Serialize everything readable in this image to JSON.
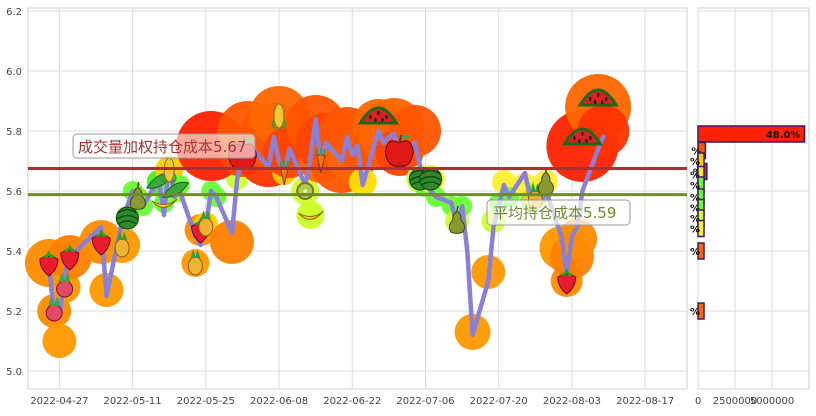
{
  "chart_data": [
    {
      "type": "line",
      "x_ticks": [
        "2022-04-27",
        "2022-05-11",
        "2022-05-25",
        "2022-06-08",
        "2022-06-22",
        "2022-07-06",
        "2022-07-20",
        "2022-08-03",
        "2022-08-17"
      ],
      "y_ticks": [
        "5.0",
        "5.2",
        "5.4",
        "5.6",
        "5.8",
        "6.0",
        "6.2"
      ],
      "ylim": [
        4.94,
        6.21
      ],
      "x_start": "2022-04-21",
      "x_end": "2022-08-25",
      "grid": true,
      "series": [
        {
          "color": "#8a80d8",
          "x": [
            "2022-04-25",
            "2022-04-26",
            "2022-04-27",
            "2022-04-28",
            "2022-04-29",
            "2022-05-05",
            "2022-05-06",
            "2022-05-09",
            "2022-05-10",
            "2022-05-11",
            "2022-05-12",
            "2022-05-13",
            "2022-05-16",
            "2022-05-17",
            "2022-05-18",
            "2022-05-19",
            "2022-05-20",
            "2022-05-23",
            "2022-05-24",
            "2022-05-25",
            "2022-05-26",
            "2022-05-27",
            "2022-05-30",
            "2022-05-31",
            "2022-06-01",
            "2022-06-02",
            "2022-06-06",
            "2022-06-07",
            "2022-06-08",
            "2022-06-09",
            "2022-06-10",
            "2022-06-13",
            "2022-06-14",
            "2022-06-15",
            "2022-06-16",
            "2022-06-17",
            "2022-06-20",
            "2022-06-21",
            "2022-06-22",
            "2022-06-23",
            "2022-06-24",
            "2022-06-27",
            "2022-06-28",
            "2022-06-29",
            "2022-06-30",
            "2022-07-01",
            "2022-07-04",
            "2022-07-05",
            "2022-07-06",
            "2022-07-07",
            "2022-07-08",
            "2022-07-11",
            "2022-07-12",
            "2022-07-13",
            "2022-07-14",
            "2022-07-15",
            "2022-07-18",
            "2022-07-19",
            "2022-07-20",
            "2022-07-21",
            "2022-07-22",
            "2022-07-25",
            "2022-07-26",
            "2022-07-27",
            "2022-07-28",
            "2022-07-29",
            "2022-08-01",
            "2022-08-02",
            "2022-08-03",
            "2022-08-04",
            "2022-08-05",
            "2022-08-08",
            "2022-08-09"
          ],
          "values": [
            5.35,
            5.2,
            5.18,
            5.32,
            5.38,
            5.48,
            5.25,
            5.5,
            5.55,
            5.6,
            5.58,
            5.55,
            5.64,
            5.52,
            5.7,
            5.58,
            5.6,
            5.45,
            5.42,
            5.48,
            5.6,
            5.58,
            5.46,
            5.64,
            5.72,
            5.76,
            5.68,
            5.78,
            5.7,
            5.66,
            5.74,
            5.62,
            5.71,
            5.84,
            5.69,
            5.76,
            5.7,
            5.78,
            5.72,
            5.75,
            5.62,
            5.8,
            5.76,
            5.78,
            5.79,
            5.72,
            5.76,
            5.68,
            5.64,
            5.6,
            5.58,
            5.56,
            5.48,
            5.55,
            5.4,
            5.12,
            5.3,
            5.48,
            5.55,
            5.62,
            5.58,
            5.66,
            5.58,
            5.55,
            5.56,
            5.6,
            5.45,
            5.32,
            5.45,
            5.48,
            5.6,
            5.74,
            5.78
          ]
        }
      ],
      "h_lines": [
        {
          "label": "成交量加权持仓成本5.67",
          "value": 5.675,
          "color": "#a83232"
        },
        {
          "label": "平均持仓成本5.59",
          "value": 5.588,
          "color": "#6e8c2a"
        }
      ],
      "markers": [
        {
          "x": "2022-04-25",
          "y": 5.36,
          "r": 24,
          "color": "#ff8c00",
          "fruit": "strawberry"
        },
        {
          "x": "2022-04-26",
          "y": 5.2,
          "r": 17,
          "color": "#ff8c00",
          "fruit": "radish"
        },
        {
          "x": "2022-04-27",
          "y": 5.1,
          "r": 17,
          "color": "#ff9900",
          "fruit": ""
        },
        {
          "x": "2022-04-28",
          "y": 5.28,
          "r": 16,
          "color": "#ff9900",
          "fruit": "radish"
        },
        {
          "x": "2022-04-29",
          "y": 5.38,
          "r": 22,
          "color": "#ff8000",
          "fruit": "strawberry"
        },
        {
          "x": "2022-05-05",
          "y": 5.43,
          "r": 22,
          "color": "#ff8c00",
          "fruit": "strawberry"
        },
        {
          "x": "2022-05-06",
          "y": 5.27,
          "r": 17,
          "color": "#ff9900",
          "fruit": ""
        },
        {
          "x": "2022-05-09",
          "y": 5.42,
          "r": 18,
          "color": "#ff9900",
          "fruit": "pineapple"
        },
        {
          "x": "2022-05-10",
          "y": 5.51,
          "r": 12,
          "color": "#ccff33",
          "fruit": "watermelon"
        },
        {
          "x": "2022-05-11",
          "y": 5.6,
          "r": 10,
          "color": "#66ff33",
          "fruit": ""
        },
        {
          "x": "2022-05-12",
          "y": 5.58,
          "r": 10,
          "color": "#77ee22",
          "fruit": "pear"
        },
        {
          "x": "2022-05-13",
          "y": 5.55,
          "r": 10,
          "color": "#66ff33",
          "fruit": ""
        },
        {
          "x": "2022-05-16",
          "y": 5.63,
          "r": 12,
          "color": "#44ee22",
          "fruit": "pea"
        },
        {
          "x": "2022-05-17",
          "y": 5.56,
          "r": 10,
          "color": "#66ff33",
          "fruit": "banana"
        },
        {
          "x": "2022-05-18",
          "y": 5.67,
          "r": 14,
          "color": "#ffcc00",
          "fruit": "corn"
        },
        {
          "x": "2022-05-19",
          "y": 5.6,
          "r": 12,
          "color": "#88ff33",
          "fruit": "pea"
        },
        {
          "x": "2022-05-20",
          "y": 5.62,
          "r": 10,
          "color": "#66ff33",
          "fruit": ""
        },
        {
          "x": "2022-05-23",
          "y": 5.36,
          "r": 14,
          "color": "#ff9900",
          "fruit": "pineapple"
        },
        {
          "x": "2022-05-24",
          "y": 5.47,
          "r": 16,
          "color": "#ff8c00",
          "fruit": "strawberry"
        },
        {
          "x": "2022-05-25",
          "y": 5.49,
          "r": 12,
          "color": "#ffcc00",
          "fruit": "pineapple"
        },
        {
          "x": "2022-05-26",
          "y": 5.6,
          "r": 10,
          "color": "#66ff33",
          "fruit": ""
        },
        {
          "x": "2022-05-27",
          "y": 5.58,
          "r": 10,
          "color": "#66ff33",
          "fruit": ""
        },
        {
          "x": "2022-05-30",
          "y": 5.43,
          "r": 22,
          "color": "#ff8000",
          "fruit": ""
        },
        {
          "x": "2022-05-31",
          "y": 5.64,
          "r": 11,
          "color": "#ccff33",
          "fruit": ""
        },
        {
          "x": "2022-05-26",
          "y": 5.75,
          "r": 35,
          "color": "#ff2200",
          "fruit": ""
        },
        {
          "x": "2022-06-01",
          "y": 5.72,
          "r": 22,
          "color": "#ff4400",
          "fruit": "apple"
        },
        {
          "x": "2022-06-02",
          "y": 5.8,
          "r": 30,
          "color": "#ff5500",
          "fruit": ""
        },
        {
          "x": "2022-06-06",
          "y": 5.72,
          "r": 32,
          "color": "#ff3300",
          "fruit": ""
        },
        {
          "x": "2022-06-07",
          "y": 5.78,
          "r": 34,
          "color": "#ff5500",
          "fruit": ""
        },
        {
          "x": "2022-06-08",
          "y": 5.85,
          "r": 30,
          "color": "#ff6600",
          "fruit": "corn"
        },
        {
          "x": "2022-06-09",
          "y": 5.66,
          "r": 12,
          "color": "#ffcc00",
          "fruit": "carrot"
        },
        {
          "x": "2022-06-10",
          "y": 5.73,
          "r": 26,
          "color": "#ff4400",
          "fruit": ""
        },
        {
          "x": "2022-06-13",
          "y": 5.6,
          "r": 14,
          "color": "#ccff33",
          "fruit": "kiwi"
        },
        {
          "x": "2022-06-14",
          "y": 5.52,
          "r": 14,
          "color": "#ccff22",
          "fruit": "banana"
        },
        {
          "x": "2022-06-15",
          "y": 5.82,
          "r": 30,
          "color": "#ff5500",
          "fruit": ""
        },
        {
          "x": "2022-06-16",
          "y": 5.7,
          "r": 22,
          "color": "#ff6600",
          "fruit": "carrot"
        },
        {
          "x": "2022-06-17",
          "y": 5.76,
          "r": 30,
          "color": "#ff4400",
          "fruit": ""
        },
        {
          "x": "2022-06-20",
          "y": 5.7,
          "r": 32,
          "color": "#ff5500",
          "fruit": ""
        },
        {
          "x": "2022-06-21",
          "y": 5.78,
          "r": 30,
          "color": "#ff5500",
          "fruit": ""
        },
        {
          "x": "2022-06-22",
          "y": 5.72,
          "r": 26,
          "color": "#ff6600",
          "fruit": ""
        },
        {
          "x": "2022-06-23",
          "y": 5.77,
          "r": 28,
          "color": "#ff5500",
          "fruit": ""
        },
        {
          "x": "2022-06-24",
          "y": 5.63,
          "r": 14,
          "color": "#ffdd00",
          "fruit": ""
        },
        {
          "x": "2022-06-27",
          "y": 5.82,
          "r": 26,
          "color": "#ff6600",
          "fruit": "watermelon"
        },
        {
          "x": "2022-06-28",
          "y": 5.77,
          "r": 28,
          "color": "#ff5500",
          "fruit": ""
        },
        {
          "x": "2022-06-29",
          "y": 5.79,
          "r": 30,
          "color": "#ff6600",
          "fruit": ""
        },
        {
          "x": "2022-06-30",
          "y": 5.81,
          "r": 30,
          "color": "#ff6600",
          "fruit": ""
        },
        {
          "x": "2022-07-01",
          "y": 5.73,
          "r": 24,
          "color": "#ff4400",
          "fruit": "apple"
        },
        {
          "x": "2022-07-04",
          "y": 5.8,
          "r": 26,
          "color": "#ff5500",
          "fruit": ""
        },
        {
          "x": "2022-07-05",
          "y": 5.64,
          "r": 14,
          "color": "#ccff33",
          "fruit": "watermelon"
        },
        {
          "x": "2022-07-06",
          "y": 5.62,
          "r": 12,
          "color": "#66ff33",
          "fruit": ""
        },
        {
          "x": "2022-07-07",
          "y": 5.64,
          "r": 14,
          "color": "#ffee33",
          "fruit": "watermelon"
        },
        {
          "x": "2022-07-08",
          "y": 5.58,
          "r": 10,
          "color": "#66ff33",
          "fruit": ""
        },
        {
          "x": "2022-07-11",
          "y": 5.55,
          "r": 10,
          "color": "#66ff33",
          "fruit": ""
        },
        {
          "x": "2022-07-12",
          "y": 5.5,
          "r": 12,
          "color": "#ccff33",
          "fruit": "pear"
        },
        {
          "x": "2022-07-13",
          "y": 5.55,
          "r": 10,
          "color": "#66ff33",
          "fruit": ""
        },
        {
          "x": "2022-07-15",
          "y": 5.13,
          "r": 18,
          "color": "#ff9900",
          "fruit": ""
        },
        {
          "x": "2022-07-18",
          "y": 5.33,
          "r": 17,
          "color": "#ff9900",
          "fruit": ""
        },
        {
          "x": "2022-07-19",
          "y": 5.5,
          "r": 12,
          "color": "#ccff33",
          "fruit": ""
        },
        {
          "x": "2022-07-20",
          "y": 5.56,
          "r": 10,
          "color": "#66ff33",
          "fruit": ""
        },
        {
          "x": "2022-07-21",
          "y": 5.63,
          "r": 12,
          "color": "#ffee33",
          "fruit": ""
        },
        {
          "x": "2022-07-22",
          "y": 5.58,
          "r": 10,
          "color": "#66ff33",
          "fruit": ""
        },
        {
          "x": "2022-07-25",
          "y": 5.62,
          "r": 12,
          "color": "#ffee33",
          "fruit": ""
        },
        {
          "x": "2022-07-26",
          "y": 5.57,
          "r": 10,
          "color": "#66ff33",
          "fruit": ""
        },
        {
          "x": "2022-07-27",
          "y": 5.58,
          "r": 12,
          "color": "#ffcc00",
          "fruit": "pineapple"
        },
        {
          "x": "2022-07-28",
          "y": 5.6,
          "r": 12,
          "color": "#66ff33",
          "fruit": ""
        },
        {
          "x": "2022-07-29",
          "y": 5.63,
          "r": 12,
          "color": "#ffee33",
          "fruit": "pear"
        },
        {
          "x": "2022-08-01",
          "y": 5.41,
          "r": 22,
          "color": "#ff9900",
          "fruit": ""
        },
        {
          "x": "2022-08-02",
          "y": 5.3,
          "r": 16,
          "color": "#ff8c00",
          "fruit": "strawberry"
        },
        {
          "x": "2022-08-03",
          "y": 5.38,
          "r": 22,
          "color": "#ff8000",
          "fruit": ""
        },
        {
          "x": "2022-08-04",
          "y": 5.44,
          "r": 20,
          "color": "#ff8c00",
          "fruit": ""
        },
        {
          "x": "2022-08-05",
          "y": 5.75,
          "r": 36,
          "color": "#ff2200",
          "fruit": "watermelon"
        },
        {
          "x": "2022-08-08",
          "y": 5.88,
          "r": 33,
          "color": "#ff6600",
          "fruit": "watermelon"
        },
        {
          "x": "2022-08-09",
          "y": 5.8,
          "r": 26,
          "color": "#ff3300",
          "fruit": ""
        }
      ]
    },
    {
      "type": "bar",
      "orientation": "horizontal",
      "x_ticks": [
        "0",
        "2500000",
        "5000000"
      ],
      "xlim": [
        0,
        7500000
      ],
      "grid": true,
      "bars": [
        {
          "y": 5.665,
          "value": 600000,
          "color": "#ff2200",
          "label": "%"
        },
        {
          "y": 5.79,
          "value": 7200000,
          "color": "#ff2200",
          "label": "48.0%"
        },
        {
          "y": 5.735,
          "value": 500000,
          "color": "#ff5500",
          "label": "%"
        },
        {
          "y": 5.7,
          "value": 400000,
          "color": "#ffcc00",
          "label": "%"
        },
        {
          "y": 5.655,
          "value": 350000,
          "color": "#ffee33",
          "label": "%"
        },
        {
          "y": 5.62,
          "value": 300000,
          "color": "#66ff33",
          "label": "%"
        },
        {
          "y": 5.58,
          "value": 300000,
          "color": "#66ff33",
          "label": "%"
        },
        {
          "y": 5.545,
          "value": 300000,
          "color": "#66ff33",
          "label": "%"
        },
        {
          "y": 5.51,
          "value": 300000,
          "color": "#ccff33",
          "label": "%"
        },
        {
          "y": 5.475,
          "value": 300000,
          "color": "#ffee33",
          "label": "%"
        },
        {
          "y": 5.4,
          "value": 350000,
          "color": "#ff6600",
          "label": "%"
        },
        {
          "y": 5.2,
          "value": 350000,
          "color": "#ff6600",
          "label": "%"
        }
      ]
    }
  ]
}
